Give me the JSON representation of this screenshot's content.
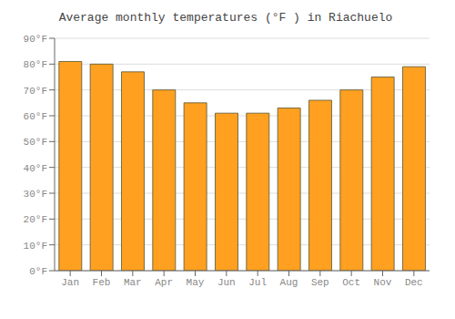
{
  "chart_data": {
    "type": "bar",
    "title": "Average monthly temperatures (°F ) in Riachuelo",
    "categories": [
      "Jan",
      "Feb",
      "Mar",
      "Apr",
      "May",
      "Jun",
      "Jul",
      "Aug",
      "Sep",
      "Oct",
      "Nov",
      "Dec"
    ],
    "values": [
      81,
      80,
      77,
      70,
      65,
      61,
      61,
      63,
      66,
      70,
      75,
      79
    ],
    "color": "#FFA020",
    "ylim": [
      0,
      90
    ],
    "yticks": [
      {
        "value": 0,
        "label": "0°F"
      },
      {
        "value": 10,
        "label": "10°F"
      },
      {
        "value": 20,
        "label": "20°F"
      },
      {
        "value": 30,
        "label": "30°F"
      },
      {
        "value": 40,
        "label": "40°F"
      },
      {
        "value": 50,
        "label": "50°F"
      },
      {
        "value": 60,
        "label": "60°F"
      },
      {
        "value": 70,
        "label": "70°F"
      },
      {
        "value": 80,
        "label": "80°F"
      },
      {
        "value": 90,
        "label": "90°F"
      }
    ],
    "grid": true
  }
}
